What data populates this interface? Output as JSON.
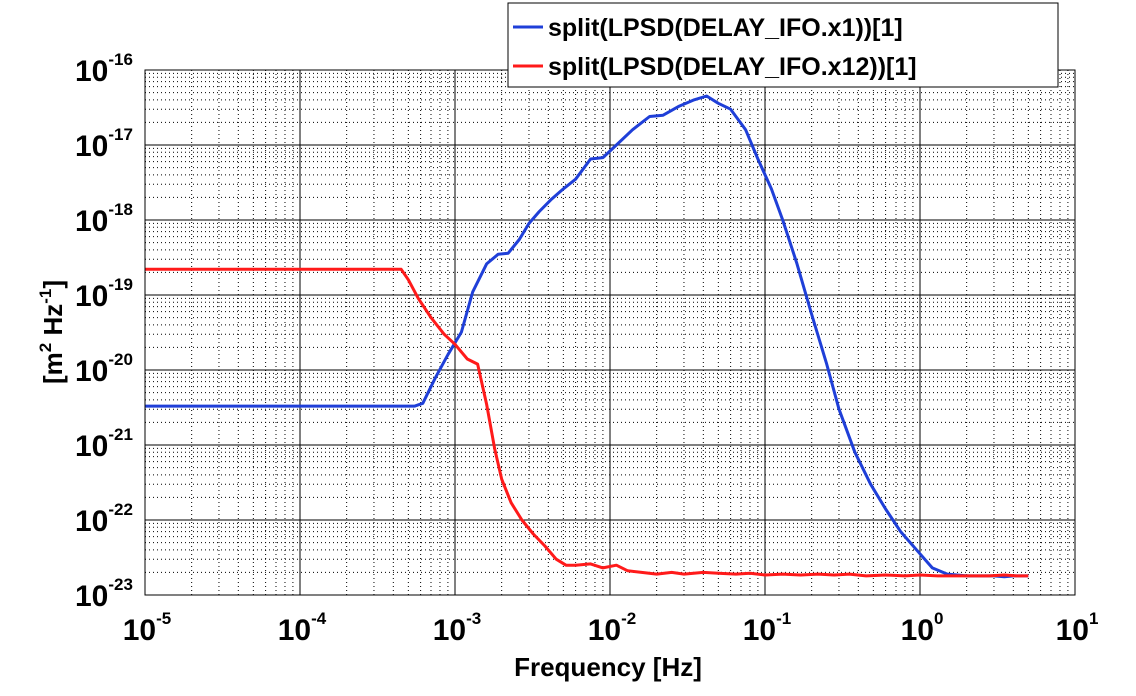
{
  "chart_data": {
    "type": "line",
    "xscale": "log",
    "yscale": "log",
    "xlim": [
      1e-05,
      10
    ],
    "ylim": [
      1e-23,
      1e-16
    ],
    "grid": true,
    "minor_grid": true,
    "legend_position": "top-right",
    "xlabel": "Frequency  [Hz]",
    "ylabel_parts": {
      "open": "[m",
      "sup1": "2",
      "middle": " Hz",
      "sup2": "-1",
      "close": "]"
    },
    "x_ticks": [
      {
        "base": "10",
        "exp": "-5",
        "value": 1e-05
      },
      {
        "base": "10",
        "exp": "-4",
        "value": 0.0001
      },
      {
        "base": "10",
        "exp": "-3",
        "value": 0.001
      },
      {
        "base": "10",
        "exp": "-2",
        "value": 0.01
      },
      {
        "base": "10",
        "exp": "-1",
        "value": 0.1
      },
      {
        "base": "10",
        "exp": "0",
        "value": 1
      },
      {
        "base": "10",
        "exp": "1",
        "value": 10
      }
    ],
    "y_ticks": [
      {
        "base": "10",
        "exp": "-16",
        "value": 1e-16
      },
      {
        "base": "10",
        "exp": "-17",
        "value": 1e-17
      },
      {
        "base": "10",
        "exp": "-18",
        "value": 1e-18
      },
      {
        "base": "10",
        "exp": "-19",
        "value": 1e-19
      },
      {
        "base": "10",
        "exp": "-20",
        "value": 1e-20
      },
      {
        "base": "10",
        "exp": "-21",
        "value": 1e-21
      },
      {
        "base": "10",
        "exp": "-22",
        "value": 1e-22
      },
      {
        "base": "10",
        "exp": "-23",
        "value": 1e-23
      }
    ],
    "series": [
      {
        "name": "split(LPSD(DELAY_IFO.x1))[1]",
        "color": "#1f3fd8",
        "x": [
          1e-05,
          0.0001,
          0.0004,
          0.00055,
          0.00062,
          0.00075,
          0.0009,
          0.0011,
          0.0013,
          0.0016,
          0.0019,
          0.0022,
          0.0026,
          0.003,
          0.0035,
          0.0042,
          0.005,
          0.006,
          0.0075,
          0.009,
          0.011,
          0.014,
          0.018,
          0.022,
          0.028,
          0.035,
          0.042,
          0.05,
          0.06,
          0.075,
          0.09,
          0.11,
          0.13,
          0.16,
          0.2,
          0.25,
          0.3,
          0.38,
          0.48,
          0.6,
          0.75,
          0.95,
          1.2,
          1.5,
          2.0,
          2.5,
          3.0,
          3.5,
          4.0,
          4.5,
          5.0
        ],
        "y": [
          3.3e-21,
          3.3e-21,
          3.3e-21,
          3.3e-21,
          3.6e-21,
          8e-21,
          1.6e-20,
          3.2e-20,
          1.1e-19,
          2.6e-19,
          3.5e-19,
          3.6e-19,
          5.5e-19,
          9e-19,
          1.3e-18,
          1.9e-18,
          2.6e-18,
          3.5e-18,
          6.5e-18,
          6.8e-18,
          1e-17,
          1.6e-17,
          2.4e-17,
          2.5e-17,
          3.3e-17,
          4e-17,
          4.5e-17,
          3.6e-17,
          3e-17,
          1.6e-17,
          6.5e-18,
          2.6e-18,
          1e-18,
          2.7e-19,
          5.5e-20,
          1.2e-20,
          3e-21,
          8e-22,
          3e-22,
          1.4e-22,
          7e-23,
          4e-23,
          2.3e-23,
          1.9e-23,
          1.8e-23,
          1.8e-23,
          1.8e-23,
          1.75e-23,
          1.8e-23,
          1.8e-23,
          1.8e-23
        ]
      },
      {
        "name": "split(LPSD(DELAY_IFO.x12))[1]",
        "color": "#ff1a1a",
        "x": [
          1e-05,
          0.0001,
          0.0003,
          0.00045,
          0.0005,
          0.00058,
          0.0007,
          0.00085,
          0.001,
          0.0012,
          0.0014,
          0.0016,
          0.0018,
          0.002,
          0.0023,
          0.0027,
          0.0032,
          0.0038,
          0.0045,
          0.0052,
          0.006,
          0.0075,
          0.009,
          0.011,
          0.013,
          0.016,
          0.02,
          0.025,
          0.03,
          0.04,
          0.05,
          0.065,
          0.08,
          0.1,
          0.13,
          0.17,
          0.22,
          0.28,
          0.35,
          0.45,
          0.6,
          0.8,
          1.0,
          1.3,
          1.7,
          2.2,
          2.8,
          3.5,
          4.2,
          5.0
        ],
        "y": [
          2.2e-19,
          2.2e-19,
          2.2e-19,
          2.2e-19,
          1.6e-19,
          9e-20,
          5e-20,
          3e-20,
          2.2e-20,
          1.4e-20,
          1.2e-20,
          3.5e-21,
          9e-22,
          3.5e-22,
          1.7e-22,
          1e-22,
          6.5e-23,
          4.5e-23,
          3e-23,
          2.5e-23,
          2.5e-23,
          2.6e-23,
          2.3e-23,
          2.5e-23,
          2.1e-23,
          2e-23,
          1.9e-23,
          2e-23,
          1.9e-23,
          2e-23,
          1.95e-23,
          1.9e-23,
          1.95e-23,
          1.85e-23,
          1.9e-23,
          1.85e-23,
          1.9e-23,
          1.85e-23,
          1.9e-23,
          1.8e-23,
          1.85e-23,
          1.8e-23,
          1.85e-23,
          1.8e-23,
          1.8e-23,
          1.8e-23,
          1.8e-23,
          1.85e-23,
          1.8e-23,
          1.8e-23
        ]
      }
    ]
  }
}
